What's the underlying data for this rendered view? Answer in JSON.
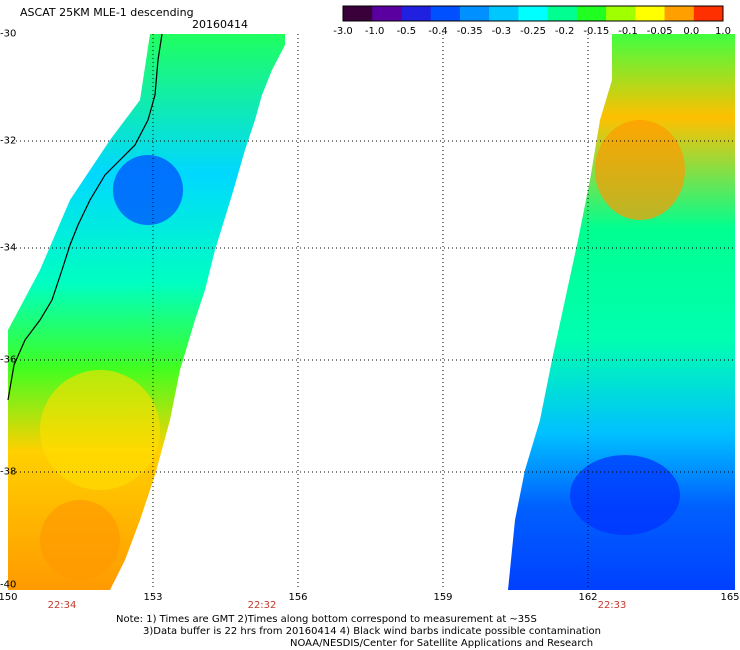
{
  "header": {
    "title": "ASCAT 25KM MLE-1 descending",
    "date": "20160414"
  },
  "colorbar": {
    "labels": [
      "-3.0",
      "-1.0",
      "-0.5",
      "-0.4",
      "-0.35",
      "-0.3",
      "-0.25",
      "-0.2",
      "-0.15",
      "-0.1",
      "-0.05",
      "0.0",
      "1.0"
    ],
    "colors": [
      "#3a003a",
      "#5a00a0",
      "#2020e0",
      "#0050ff",
      "#0090ff",
      "#00c8ff",
      "#00ffff",
      "#00ff90",
      "#20ff20",
      "#a0ff00",
      "#ffff00",
      "#ffa000",
      "#ff3000"
    ]
  },
  "axes": {
    "lat_labels": [
      "-30",
      "-32",
      "-34",
      "-36",
      "-38",
      "-40"
    ],
    "lon_labels": [
      "150",
      "153",
      "156",
      "159",
      "162",
      "165"
    ],
    "time_labels": [
      "22:34",
      "22:32",
      "22:33"
    ]
  },
  "notes": {
    "line1": "Note: 1) Times are GMT 2)Times along bottom correspond to measurement at ~35S",
    "line2": "3)Data buffer is 22 hrs from 20160414 4) Black wind barbs indicate possible contamination",
    "line3": "NOAA/NESDIS/Center for Satellite Applications and Research"
  }
}
